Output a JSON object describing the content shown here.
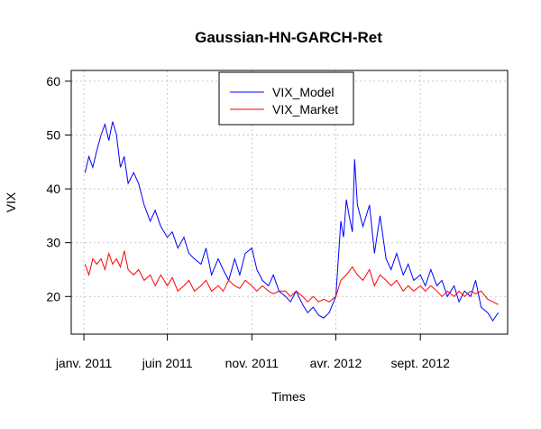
{
  "chart_data": {
    "type": "line",
    "title": "Gaussian-HN-GARCH-Ret",
    "xlabel": "Times",
    "ylabel": "VIX",
    "x_tick_labels": [
      "janv. 2011",
      "juin 2011",
      "nov. 2011",
      "avr. 2012",
      "sept. 2012"
    ],
    "x_tick_dates": [
      "2011-01-01",
      "2011-06-01",
      "2011-11-01",
      "2012-04-01",
      "2012-09-01"
    ],
    "xlim": [
      "2010-12-09",
      "2013-02-06"
    ],
    "yticks": [
      20,
      30,
      40,
      50,
      60
    ],
    "ylim": [
      13,
      62
    ],
    "grid": true,
    "legend_position": "top-center",
    "series": [
      {
        "name": "VIX_Model",
        "color": "#0000ff",
        "points": [
          [
            "2011-01-03",
            43
          ],
          [
            "2011-01-10",
            46
          ],
          [
            "2011-01-17",
            44
          ],
          [
            "2011-01-24",
            47
          ],
          [
            "2011-02-01",
            50
          ],
          [
            "2011-02-08",
            52
          ],
          [
            "2011-02-15",
            49
          ],
          [
            "2011-02-22",
            52.5
          ],
          [
            "2011-03-01",
            50
          ],
          [
            "2011-03-08",
            44
          ],
          [
            "2011-03-15",
            46
          ],
          [
            "2011-03-22",
            41
          ],
          [
            "2011-04-01",
            43
          ],
          [
            "2011-04-10",
            41
          ],
          [
            "2011-04-20",
            37
          ],
          [
            "2011-05-01",
            34
          ],
          [
            "2011-05-10",
            36
          ],
          [
            "2011-05-20",
            33
          ],
          [
            "2011-06-01",
            31
          ],
          [
            "2011-06-10",
            32
          ],
          [
            "2011-06-20",
            29
          ],
          [
            "2011-07-01",
            31
          ],
          [
            "2011-07-10",
            28
          ],
          [
            "2011-07-20",
            27
          ],
          [
            "2011-08-01",
            26
          ],
          [
            "2011-08-10",
            29
          ],
          [
            "2011-08-20",
            24
          ],
          [
            "2011-09-01",
            27
          ],
          [
            "2011-09-10",
            25
          ],
          [
            "2011-09-20",
            23
          ],
          [
            "2011-10-01",
            27
          ],
          [
            "2011-10-10",
            24
          ],
          [
            "2011-10-20",
            28
          ],
          [
            "2011-11-01",
            29
          ],
          [
            "2011-11-10",
            25
          ],
          [
            "2011-11-20",
            23
          ],
          [
            "2011-12-01",
            22
          ],
          [
            "2011-12-10",
            24
          ],
          [
            "2011-12-20",
            21
          ],
          [
            "2012-01-01",
            20
          ],
          [
            "2012-01-10",
            19
          ],
          [
            "2012-01-20",
            21
          ],
          [
            "2012-02-01",
            18.5
          ],
          [
            "2012-02-10",
            17
          ],
          [
            "2012-02-20",
            18
          ],
          [
            "2012-03-01",
            16.5
          ],
          [
            "2012-03-10",
            16
          ],
          [
            "2012-03-20",
            17
          ],
          [
            "2012-04-01",
            20
          ],
          [
            "2012-04-10",
            34
          ],
          [
            "2012-04-15",
            31
          ],
          [
            "2012-04-20",
            38
          ],
          [
            "2012-04-25",
            35
          ],
          [
            "2012-05-01",
            32
          ],
          [
            "2012-05-05",
            45.5
          ],
          [
            "2012-05-10",
            37
          ],
          [
            "2012-05-20",
            33
          ],
          [
            "2012-06-01",
            37
          ],
          [
            "2012-06-10",
            28
          ],
          [
            "2012-06-20",
            35
          ],
          [
            "2012-07-01",
            27
          ],
          [
            "2012-07-10",
            25
          ],
          [
            "2012-07-20",
            28
          ],
          [
            "2012-08-01",
            24
          ],
          [
            "2012-08-10",
            26
          ],
          [
            "2012-08-20",
            23
          ],
          [
            "2012-09-01",
            24
          ],
          [
            "2012-09-10",
            22
          ],
          [
            "2012-09-20",
            25
          ],
          [
            "2012-10-01",
            22
          ],
          [
            "2012-10-10",
            23
          ],
          [
            "2012-10-20",
            20
          ],
          [
            "2012-11-01",
            22
          ],
          [
            "2012-11-10",
            19
          ],
          [
            "2012-11-20",
            21
          ],
          [
            "2012-12-01",
            20
          ],
          [
            "2012-12-10",
            23
          ],
          [
            "2012-12-20",
            18
          ],
          [
            "2013-01-01",
            17
          ],
          [
            "2013-01-10",
            15.5
          ],
          [
            "2013-01-20",
            17
          ]
        ]
      },
      {
        "name": "VIX_Market",
        "color": "#ff0000",
        "points": [
          [
            "2011-01-03",
            26
          ],
          [
            "2011-01-10",
            24
          ],
          [
            "2011-01-17",
            27
          ],
          [
            "2011-01-24",
            26
          ],
          [
            "2011-02-01",
            27
          ],
          [
            "2011-02-08",
            25
          ],
          [
            "2011-02-15",
            28
          ],
          [
            "2011-02-22",
            26
          ],
          [
            "2011-03-01",
            27
          ],
          [
            "2011-03-08",
            25.5
          ],
          [
            "2011-03-15",
            28.5
          ],
          [
            "2011-03-22",
            25
          ],
          [
            "2011-04-01",
            24
          ],
          [
            "2011-04-10",
            25
          ],
          [
            "2011-04-20",
            23
          ],
          [
            "2011-05-01",
            24
          ],
          [
            "2011-05-10",
            22
          ],
          [
            "2011-05-20",
            24
          ],
          [
            "2011-06-01",
            22
          ],
          [
            "2011-06-10",
            23.5
          ],
          [
            "2011-06-20",
            21
          ],
          [
            "2011-07-01",
            22
          ],
          [
            "2011-07-10",
            23
          ],
          [
            "2011-07-20",
            21
          ],
          [
            "2011-08-01",
            22
          ],
          [
            "2011-08-10",
            23
          ],
          [
            "2011-08-20",
            21
          ],
          [
            "2011-09-01",
            22
          ],
          [
            "2011-09-10",
            21
          ],
          [
            "2011-09-20",
            23
          ],
          [
            "2011-10-01",
            22
          ],
          [
            "2011-10-10",
            21.5
          ],
          [
            "2011-10-20",
            23
          ],
          [
            "2011-11-01",
            22
          ],
          [
            "2011-11-10",
            21
          ],
          [
            "2011-11-20",
            22
          ],
          [
            "2011-12-01",
            21
          ],
          [
            "2011-12-10",
            20.5
          ],
          [
            "2011-12-20",
            21
          ],
          [
            "2012-01-01",
            21
          ],
          [
            "2012-01-10",
            20
          ],
          [
            "2012-01-20",
            21
          ],
          [
            "2012-02-01",
            20
          ],
          [
            "2012-02-10",
            19
          ],
          [
            "2012-02-20",
            20
          ],
          [
            "2012-03-01",
            19
          ],
          [
            "2012-03-10",
            19.5
          ],
          [
            "2012-03-20",
            19
          ],
          [
            "2012-04-01",
            20
          ],
          [
            "2012-04-10",
            23
          ],
          [
            "2012-04-20",
            24
          ],
          [
            "2012-05-01",
            25.5
          ],
          [
            "2012-05-10",
            24
          ],
          [
            "2012-05-20",
            23
          ],
          [
            "2012-06-01",
            25
          ],
          [
            "2012-06-10",
            22
          ],
          [
            "2012-06-20",
            24
          ],
          [
            "2012-07-01",
            23
          ],
          [
            "2012-07-10",
            22
          ],
          [
            "2012-07-20",
            23
          ],
          [
            "2012-08-01",
            21
          ],
          [
            "2012-08-10",
            22
          ],
          [
            "2012-08-20",
            21
          ],
          [
            "2012-09-01",
            22
          ],
          [
            "2012-09-10",
            21
          ],
          [
            "2012-09-20",
            22
          ],
          [
            "2012-10-01",
            21
          ],
          [
            "2012-10-10",
            20
          ],
          [
            "2012-10-20",
            21
          ],
          [
            "2012-11-01",
            20
          ],
          [
            "2012-11-10",
            21
          ],
          [
            "2012-11-20",
            20
          ],
          [
            "2012-12-01",
            21
          ],
          [
            "2012-12-10",
            20.5
          ],
          [
            "2012-12-20",
            21
          ],
          [
            "2013-01-01",
            19.5
          ],
          [
            "2013-01-10",
            19
          ],
          [
            "2013-01-20",
            18.5
          ]
        ]
      }
    ]
  }
}
